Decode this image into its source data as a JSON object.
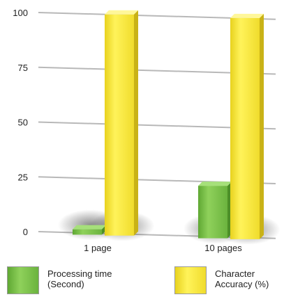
{
  "chart_data": {
    "type": "bar",
    "categories": [
      "1 page",
      "10 pages"
    ],
    "series": [
      {
        "name": "Processing time (Second)",
        "values": [
          1.5,
          23
        ],
        "color": "#7cc34a"
      },
      {
        "name": "Character Accuracy (%)",
        "values": [
          100,
          100
        ],
        "color": "#f7e93a"
      }
    ],
    "yticks": [
      0,
      25,
      50,
      75,
      100
    ],
    "ylim": [
      0,
      100
    ],
    "grid": true,
    "legend_placement": "bottom",
    "title": "",
    "xlabel": "",
    "ylabel": ""
  },
  "legend": [
    {
      "line1": "Processing time",
      "line2": "(Second)",
      "color": "#7cc34a"
    },
    {
      "line1": "Character",
      "line2": "Accuracy (%)",
      "color": "#f7e93a"
    }
  ]
}
